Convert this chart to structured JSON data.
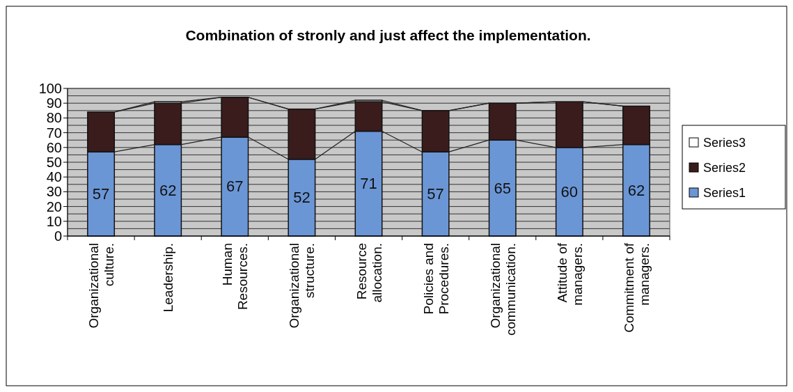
{
  "chart_data": {
    "type": "bar",
    "title": "Combination of stronly and just affect the implementation.",
    "stacked": true,
    "categories": [
      "Organizational culture.",
      "Leadership.",
      "Human Resources.",
      "Organizational structure.",
      "Resource allocation.",
      "Policies and Procedures.",
      "Organizational communication.",
      "Attitude of managers.",
      "Commitment of managers."
    ],
    "series": [
      {
        "name": "Series1",
        "color": "#6b96d6",
        "values": [
          57,
          62,
          67,
          52,
          71,
          57,
          65,
          60,
          62
        ],
        "value_labels": [
          "57",
          "62",
          "67",
          "52",
          "71",
          "57",
          "65",
          "60",
          "62"
        ]
      },
      {
        "name": "Series2",
        "color": "#3a1c1c",
        "values": [
          27,
          28,
          27,
          34,
          20,
          28,
          25,
          31,
          26
        ]
      },
      {
        "name": "Series3",
        "color": "#ffffff",
        "values": [
          0,
          1,
          0,
          0,
          1,
          0,
          0,
          0,
          0
        ]
      }
    ],
    "ylim": [
      0,
      100
    ],
    "yticks": [
      0,
      {
        "value": 5,
        "label": null
      },
      10,
      {
        "value": 15,
        "label": null
      },
      20,
      {
        "value": 25,
        "label": null
      },
      30,
      {
        "value": 35,
        "label": null
      },
      40,
      {
        "value": 45,
        "label": null
      },
      50,
      {
        "value": 55,
        "label": null
      },
      60,
      {
        "value": 65,
        "label": null
      },
      70,
      {
        "value": 75,
        "label": null
      },
      80,
      {
        "value": 85,
        "label": null
      },
      90,
      {
        "value": 95,
        "label": null
      },
      100
    ],
    "grid": "y",
    "legend": "right"
  }
}
